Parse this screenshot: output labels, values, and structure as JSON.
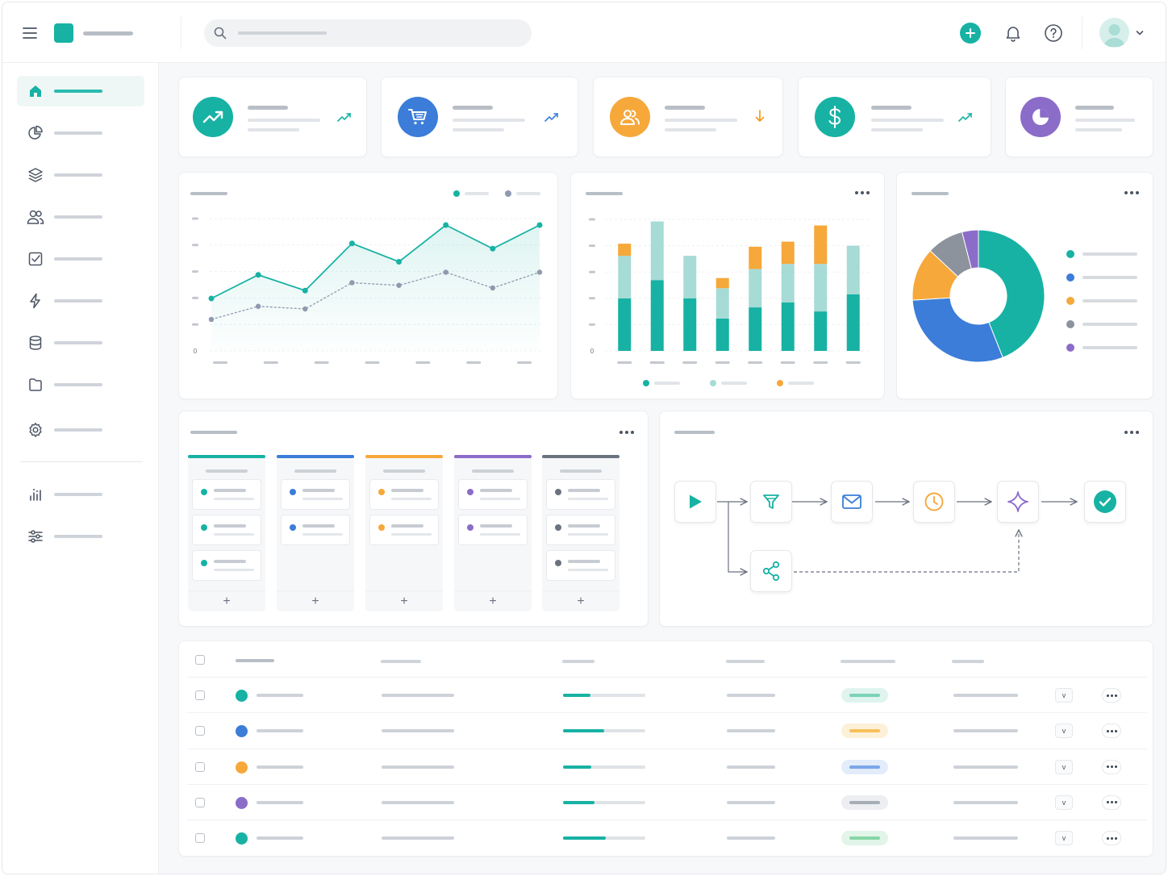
{
  "colors": {
    "teal": "#17b2a4",
    "teal_light": "#a7dbd6",
    "blue": "#3b7dd8",
    "orange": "#f6a83a",
    "purple": "#8b6cc9",
    "gray": "#8c939c",
    "orange_text": "#f29b1f"
  },
  "header": {
    "menu_icon": "hamburger-icon",
    "logo_icon": "app-logo",
    "search_icon": "search-icon",
    "actions": [
      "plus-icon",
      "bell-icon",
      "help-icon",
      "avatar",
      "chevron-down-icon"
    ]
  },
  "sidebar": {
    "items": [
      {
        "icon": "home-icon",
        "active": true
      },
      {
        "icon": "pie-chart-icon"
      },
      {
        "icon": "layers-icon"
      },
      {
        "icon": "users-icon"
      },
      {
        "icon": "checkbox-icon"
      },
      {
        "icon": "lightning-icon"
      },
      {
        "icon": "database-icon"
      },
      {
        "icon": "file-icon"
      },
      {
        "icon": "settings-icon"
      }
    ],
    "bottom_items": [
      {
        "icon": "bar-chart-icon"
      },
      {
        "icon": "sliders-icon"
      }
    ]
  },
  "kpi_cards": [
    {
      "icon": "trending-up-icon",
      "color": "#17b2a4",
      "trend": "up"
    },
    {
      "icon": "shopping-cart-icon",
      "color": "#3b7dd8",
      "trend": "up"
    },
    {
      "icon": "users-icon",
      "color": "#f6a83a",
      "trend": "down"
    },
    {
      "icon": "dollar-icon",
      "color": "#17b2a4",
      "trend": "up"
    },
    {
      "icon": "pie-chart-icon",
      "color": "#8b6cc9",
      "trend": "none"
    }
  ],
  "line_chart": {
    "y_tick_labels": [
      "",
      "",
      "",
      "",
      "",
      "0"
    ],
    "grid": true
  },
  "bar_chart": {
    "y_tick_labels": [
      "",
      "",
      "",
      "",
      "",
      "0"
    ],
    "grid": true
  },
  "chart_data": [
    {
      "type": "line",
      "x": [
        1,
        2,
        3,
        4,
        5,
        6,
        7,
        8
      ],
      "series": [
        {
          "values": [
            20,
            29,
            23,
            41,
            34,
            48,
            39,
            48
          ]
        },
        {
          "values": [
            12,
            17,
            16,
            26,
            25,
            30,
            24,
            30
          ]
        }
      ],
      "ylim": [
        0,
        52
      ],
      "grid": true,
      "legend": "top-right"
    },
    {
      "type": "bar",
      "stacked": true,
      "categories": [
        1,
        2,
        3,
        4,
        5,
        6,
        7,
        8
      ],
      "series": [
        {
          "values": [
            52,
            70,
            52,
            32,
            43,
            48,
            39,
            56
          ]
        },
        {
          "values": [
            42,
            58,
            42,
            30,
            38,
            38,
            47,
            48
          ]
        },
        {
          "values": [
            12,
            0,
            0,
            10,
            22,
            22,
            38,
            0
          ]
        }
      ],
      "ylim": [
        0,
        130
      ],
      "grid": true,
      "legend": "bottom"
    },
    {
      "type": "pie",
      "donut": true,
      "values": [
        44,
        30,
        13,
        9,
        4
      ],
      "legend": "right"
    }
  ],
  "kanban": {
    "columns": [
      {
        "color": "#17b2a4",
        "cards": 3
      },
      {
        "color": "#3b7dd8",
        "cards": 2
      },
      {
        "color": "#f6a83a",
        "cards": 2
      },
      {
        "color": "#8b6cc9",
        "cards": 2
      },
      {
        "color": "#6b7280",
        "cards": 3
      }
    ],
    "add_label": "+"
  },
  "workflow": {
    "nodes": [
      "play-icon",
      "filter-icon",
      "mail-icon",
      "clock-icon",
      "sparkle-icon",
      "check-circle-icon",
      "share-icon"
    ]
  },
  "table": {
    "rows": [
      {
        "dot": "#17b2a4",
        "progress": 0.33,
        "pill_bg": "#dff4ef",
        "pill_fg": "#7bd3b9"
      },
      {
        "dot": "#3b7dd8",
        "progress": 0.5,
        "pill_bg": "#fdf0d8",
        "pill_fg": "#f6c05a"
      },
      {
        "dot": "#f6a83a",
        "progress": 0.34,
        "pill_bg": "#e2ecfb",
        "pill_fg": "#7aa7ea"
      },
      {
        "dot": "#8b6cc9",
        "progress": 0.38,
        "pill_bg": "#eceef1",
        "pill_fg": "#a7adb5"
      },
      {
        "dot": "#17b2a4",
        "progress": 0.52,
        "pill_bg": "#e1f5e8",
        "pill_fg": "#86d6a5"
      }
    ],
    "select_label": "v"
  }
}
